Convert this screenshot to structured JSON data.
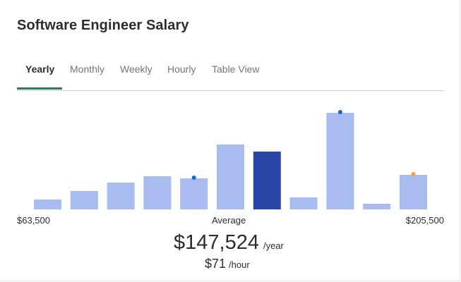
{
  "title": "Software Engineer Salary",
  "tabs": [
    {
      "label": "Yearly",
      "active": true
    },
    {
      "label": "Monthly",
      "active": false
    },
    {
      "label": "Weekly",
      "active": false
    },
    {
      "label": "Hourly",
      "active": false
    },
    {
      "label": "Table View",
      "active": false
    }
  ],
  "colors": {
    "bar": "#a8bcf2",
    "bar_highlight": "#2746a5",
    "dot_blue": "#1466d8",
    "dot_orange": "#f5a23a",
    "tab_underline": "#2d7c5f"
  },
  "chart_data": {
    "type": "bar",
    "values": [
      14,
      26,
      38,
      47,
      44,
      92,
      82,
      17,
      137,
      8,
      49
    ],
    "highlight_index": 6,
    "markers": [
      {
        "index": 4,
        "color": "blue"
      },
      {
        "index": 8,
        "color": "blue"
      },
      {
        "index": 10,
        "color": "orange"
      }
    ],
    "range_min": "$63,500",
    "range_max": "$205,500",
    "average_label": "Average"
  },
  "salary": {
    "amount": "$147,524",
    "unit": "/year",
    "hourly_amount": "$71",
    "hourly_unit": "/hour"
  }
}
